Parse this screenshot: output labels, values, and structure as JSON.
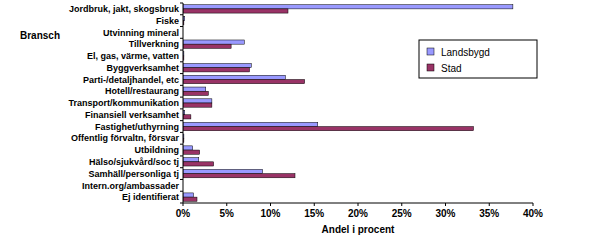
{
  "chart_data": {
    "type": "bar",
    "orientation": "horizontal",
    "x_label": "Andel i procent",
    "y_label": "Bransch",
    "categories": [
      "Jordbruk, jakt, skogsbruk",
      "Fiske",
      "Utvinning mineral",
      "Tillverkning",
      "El, gas, värme, vatten",
      "Byggverksamhet",
      "Parti-/detaljhandel, etc",
      "Hotell/restaurang",
      "Transport/kommunikation",
      "Finansiell verksamhet",
      "Fastighet/uthyrning",
      "Offentlig förvaltn, försvar",
      "Utbildning",
      "Hälso/sjukvård/soc tj",
      "Samhäll/personliga tj",
      "Intern.org/ambassader",
      "Ej identifierat"
    ],
    "series": [
      {
        "name": "Landsbygd",
        "color": "#9999ff",
        "values": [
          37.7,
          0.2,
          0,
          7.0,
          0.1,
          7.8,
          11.7,
          2.6,
          3.3,
          0.2,
          15.4,
          0.1,
          1.1,
          1.8,
          9.1,
          0,
          1.2
        ]
      },
      {
        "name": "Stad",
        "color": "#993366",
        "values": [
          12.0,
          0.1,
          0,
          5.5,
          0.1,
          7.6,
          13.9,
          2.9,
          3.3,
          0.9,
          33.2,
          0.1,
          1.9,
          3.5,
          12.8,
          0,
          1.6
        ]
      }
    ],
    "xlim": [
      0,
      40
    ],
    "xticks": [
      {
        "value": 0,
        "label": "0%"
      },
      {
        "value": 5,
        "label": "5%"
      },
      {
        "value": 10,
        "label": "10%"
      },
      {
        "value": 15,
        "label": "15%"
      },
      {
        "value": 20,
        "label": "20%"
      },
      {
        "value": 25,
        "label": "25%"
      },
      {
        "value": 30,
        "label": "30%"
      },
      {
        "value": 35,
        "label": "35%"
      },
      {
        "value": 40,
        "label": "40%"
      }
    ],
    "grid": false,
    "legend": "right"
  }
}
